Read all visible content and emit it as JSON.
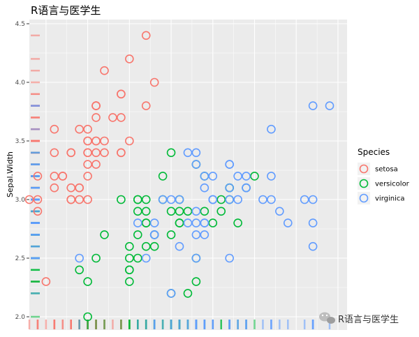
{
  "chart_data": {
    "type": "scatter",
    "title": "R语言与医学生",
    "xlabel": "",
    "ylabel": "Sepal.Width",
    "ylim": [
      1.95,
      4.5
    ],
    "yticks": [
      2.0,
      2.5,
      3.0,
      3.5,
      4.0,
      4.5
    ],
    "ytick_labels": [
      "2.0",
      "2.5",
      "3.0",
      "3.5",
      "4.0",
      "4.5"
    ],
    "xlim": [
      4.2,
      8.1
    ],
    "grid": true,
    "rug": true,
    "legend": {
      "title": "Species",
      "position": "right"
    },
    "series": [
      {
        "name": "setosa",
        "color": "#F8766D",
        "points": [
          [
            5.1,
            3.5
          ],
          [
            4.9,
            3.0
          ],
          [
            4.7,
            3.2
          ],
          [
            4.6,
            3.1
          ],
          [
            5.0,
            3.6
          ],
          [
            5.4,
            3.9
          ],
          [
            4.6,
            3.4
          ],
          [
            5.0,
            3.4
          ],
          [
            4.4,
            2.9
          ],
          [
            4.9,
            3.1
          ],
          [
            5.4,
            3.7
          ],
          [
            4.8,
            3.4
          ],
          [
            4.8,
            3.0
          ],
          [
            4.3,
            3.0
          ],
          [
            5.8,
            4.0
          ],
          [
            5.7,
            4.4
          ],
          [
            5.4,
            3.9
          ],
          [
            5.1,
            3.5
          ],
          [
            5.7,
            3.8
          ],
          [
            5.1,
            3.8
          ],
          [
            5.4,
            3.4
          ],
          [
            5.1,
            3.7
          ],
          [
            4.6,
            3.6
          ],
          [
            5.1,
            3.3
          ],
          [
            4.8,
            3.4
          ],
          [
            5.0,
            3.0
          ],
          [
            5.0,
            3.4
          ],
          [
            5.2,
            3.5
          ],
          [
            5.2,
            3.4
          ],
          [
            4.7,
            3.2
          ],
          [
            4.8,
            3.1
          ],
          [
            5.4,
            3.4
          ],
          [
            5.2,
            4.1
          ],
          [
            5.5,
            4.2
          ],
          [
            4.9,
            3.1
          ],
          [
            5.0,
            3.2
          ],
          [
            5.5,
            3.5
          ],
          [
            4.9,
            3.6
          ],
          [
            4.4,
            3.0
          ],
          [
            5.1,
            3.4
          ],
          [
            5.0,
            3.5
          ],
          [
            4.5,
            2.3
          ],
          [
            4.4,
            3.2
          ],
          [
            5.0,
            3.5
          ],
          [
            5.1,
            3.8
          ],
          [
            4.8,
            3.0
          ],
          [
            5.1,
            3.8
          ],
          [
            4.6,
            3.2
          ],
          [
            5.3,
            3.7
          ],
          [
            5.0,
            3.3
          ]
        ]
      },
      {
        "name": "versicolor",
        "color": "#00BA38",
        "points": [
          [
            7.0,
            3.2
          ],
          [
            6.4,
            3.2
          ],
          [
            6.9,
            3.1
          ],
          [
            5.5,
            2.3
          ],
          [
            6.5,
            2.8
          ],
          [
            5.7,
            2.8
          ],
          [
            6.3,
            3.3
          ],
          [
            4.9,
            2.4
          ],
          [
            6.6,
            2.9
          ],
          [
            5.2,
            2.7
          ],
          [
            5.0,
            2.0
          ],
          [
            5.9,
            3.0
          ],
          [
            6.0,
            2.2
          ],
          [
            6.1,
            2.9
          ],
          [
            5.6,
            2.9
          ],
          [
            6.7,
            3.1
          ],
          [
            5.6,
            3.0
          ],
          [
            5.8,
            2.7
          ],
          [
            6.2,
            2.2
          ],
          [
            5.6,
            2.5
          ],
          [
            5.9,
            3.2
          ],
          [
            6.1,
            2.8
          ],
          [
            6.3,
            2.5
          ],
          [
            6.1,
            2.8
          ],
          [
            6.4,
            2.9
          ],
          [
            6.6,
            3.0
          ],
          [
            6.8,
            2.8
          ],
          [
            6.7,
            3.0
          ],
          [
            6.0,
            2.9
          ],
          [
            5.7,
            2.6
          ],
          [
            5.5,
            2.4
          ],
          [
            5.5,
            2.4
          ],
          [
            5.8,
            2.7
          ],
          [
            6.0,
            2.7
          ],
          [
            5.4,
            3.0
          ],
          [
            6.0,
            3.4
          ],
          [
            6.7,
            3.1
          ],
          [
            6.3,
            2.3
          ],
          [
            5.6,
            3.0
          ],
          [
            5.5,
            2.5
          ],
          [
            5.5,
            2.6
          ],
          [
            6.1,
            3.0
          ],
          [
            5.8,
            2.6
          ],
          [
            5.0,
            2.3
          ],
          [
            5.6,
            2.7
          ],
          [
            5.7,
            3.0
          ],
          [
            5.7,
            2.9
          ],
          [
            6.2,
            2.9
          ],
          [
            5.1,
            2.5
          ],
          [
            5.7,
            2.8
          ]
        ]
      },
      {
        "name": "virginica",
        "color": "#619CFF",
        "points": [
          [
            6.3,
            3.3
          ],
          [
            5.8,
            2.7
          ],
          [
            7.1,
            3.0
          ],
          [
            6.3,
            2.9
          ],
          [
            6.5,
            3.0
          ],
          [
            7.6,
            3.0
          ],
          [
            4.9,
            2.5
          ],
          [
            7.3,
            2.9
          ],
          [
            6.7,
            2.5
          ],
          [
            7.2,
            3.6
          ],
          [
            6.5,
            3.2
          ],
          [
            6.4,
            2.7
          ],
          [
            6.8,
            3.0
          ],
          [
            5.7,
            2.5
          ],
          [
            5.8,
            2.8
          ],
          [
            6.4,
            3.2
          ],
          [
            6.5,
            3.0
          ],
          [
            7.7,
            3.8
          ],
          [
            7.7,
            2.6
          ],
          [
            6.0,
            2.2
          ],
          [
            6.9,
            3.2
          ],
          [
            5.6,
            2.8
          ],
          [
            7.7,
            2.8
          ],
          [
            6.3,
            2.7
          ],
          [
            6.7,
            3.3
          ],
          [
            7.2,
            3.2
          ],
          [
            6.2,
            2.8
          ],
          [
            6.1,
            3.0
          ],
          [
            6.4,
            2.8
          ],
          [
            7.2,
            3.0
          ],
          [
            7.4,
            2.8
          ],
          [
            7.9,
            3.8
          ],
          [
            6.4,
            2.8
          ],
          [
            6.3,
            2.8
          ],
          [
            6.1,
            2.6
          ],
          [
            7.7,
            3.0
          ],
          [
            6.3,
            3.4
          ],
          [
            6.4,
            3.1
          ],
          [
            6.0,
            3.0
          ],
          [
            6.9,
            3.1
          ],
          [
            6.7,
            3.1
          ],
          [
            6.9,
            3.1
          ],
          [
            5.8,
            2.7
          ],
          [
            6.8,
            3.2
          ],
          [
            6.7,
            3.3
          ],
          [
            6.7,
            3.0
          ],
          [
            6.3,
            2.5
          ],
          [
            6.5,
            3.0
          ],
          [
            6.2,
            3.4
          ],
          [
            5.9,
            3.0
          ]
        ]
      }
    ]
  },
  "watermark": "R语言与医学生"
}
